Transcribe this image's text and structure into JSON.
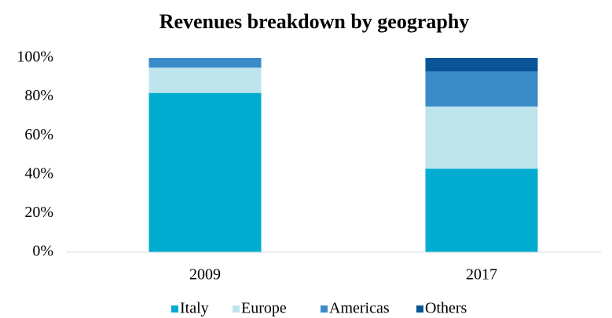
{
  "chart_data": {
    "type": "stacked_bar",
    "title": "Revenues breakdown by geography",
    "categories": [
      "2009",
      "2017"
    ],
    "series": [
      {
        "name": "Italy",
        "color": "#00acd0",
        "values": [
          82,
          43
        ]
      },
      {
        "name": "Europe",
        "color": "#bee4ec",
        "values": [
          13,
          32
        ]
      },
      {
        "name": "Americas",
        "color": "#3b8bc9",
        "values": [
          5,
          18
        ]
      },
      {
        "name": "Others",
        "color": "#0a5597",
        "values": [
          0,
          7
        ]
      }
    ],
    "ylim": [
      0,
      100
    ],
    "yticks": [
      {
        "value": 0,
        "label": "0%"
      },
      {
        "value": 20,
        "label": "20%"
      },
      {
        "value": 40,
        "label": "40%"
      },
      {
        "value": 60,
        "label": "60%"
      },
      {
        "value": 80,
        "label": "80%"
      },
      {
        "value": 100,
        "label": "100%"
      }
    ],
    "grid": false,
    "legend": "bottom"
  }
}
